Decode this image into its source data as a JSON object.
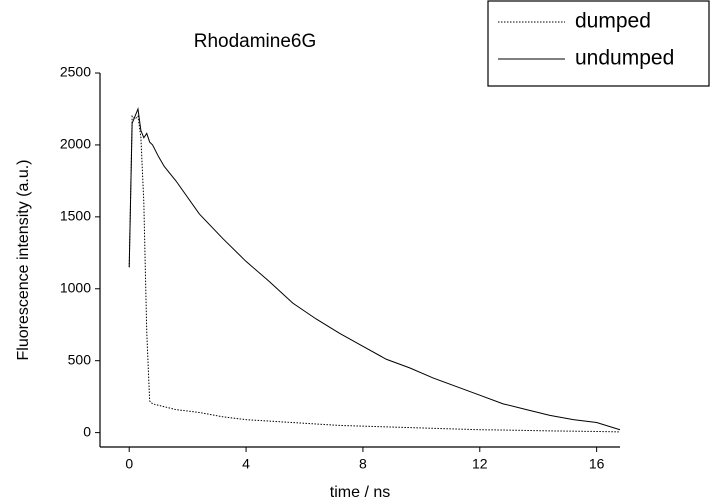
{
  "chart_data": {
    "type": "line",
    "title": "Rhodamine6G",
    "xlabel": "time / ns",
    "ylabel": "Fluorescence intensity (a.u.)",
    "x": [
      0,
      0.1,
      0.2,
      0.3,
      0.4,
      0.5,
      0.6,
      0.7,
      0.8,
      1.0,
      1.2,
      1.6,
      2.4,
      3.2,
      4,
      4.8,
      5.6,
      6.4,
      7.2,
      8,
      8.8,
      9.6,
      10.4,
      11.2,
      12,
      12.8,
      13.6,
      14.4,
      15.2,
      16,
      16.8
    ],
    "series": [
      {
        "name": "dumped",
        "color": "#000000",
        "style": "dotted",
        "values": [
          1150,
          2200,
          2180,
          2200,
          2050,
          1600,
          700,
          220,
          200,
          190,
          180,
          160,
          140,
          110,
          90,
          80,
          70,
          60,
          50,
          45,
          40,
          35,
          30,
          25,
          20,
          18,
          15,
          12,
          10,
          8,
          5
        ]
      },
      {
        "name": "undumped",
        "color": "#000000",
        "style": "solid",
        "values": [
          1150,
          2150,
          2200,
          2250,
          2100,
          2050,
          2080,
          2020,
          2000,
          1920,
          1850,
          1750,
          1520,
          1350,
          1190,
          1050,
          900,
          790,
          690,
          600,
          510,
          450,
          380,
          320,
          260,
          200,
          160,
          120,
          90,
          70,
          20
        ]
      }
    ],
    "xlim": [
      -1,
      16.8
    ],
    "xticks": [
      0,
      4,
      8,
      12,
      16
    ],
    "ylim": [
      -100,
      2500
    ],
    "yticks": [
      0,
      500,
      1000,
      1500,
      2000,
      2500
    ],
    "legend": "upper right"
  }
}
